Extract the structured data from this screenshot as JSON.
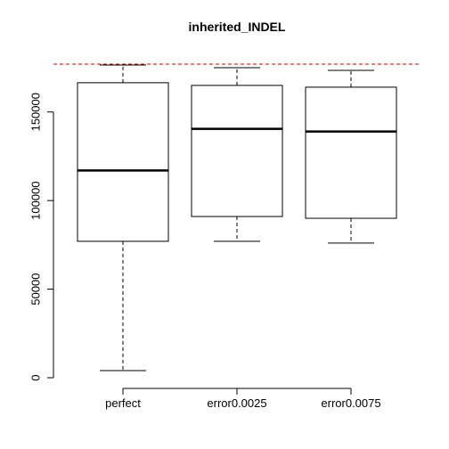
{
  "chart_data": {
    "type": "boxplot",
    "title": "inherited_INDEL",
    "xlabel": "",
    "ylabel": "",
    "categories": [
      "perfect",
      "error0.0025",
      "error0.0075"
    ],
    "boxes": [
      {
        "whisker_low": 4000,
        "q1": 77000,
        "median": 117000,
        "q3": 166500,
        "whisker_high": 176500
      },
      {
        "whisker_low": 77000,
        "q1": 91000,
        "median": 140500,
        "q3": 165000,
        "whisker_high": 175000
      },
      {
        "whisker_low": 76000,
        "q1": 90000,
        "median": 139000,
        "q3": 164000,
        "whisker_high": 173500
      }
    ],
    "reference_line": {
      "y": 177000,
      "color": "#cc0000",
      "style": "dashed"
    },
    "ylim": [
      0,
      177000
    ],
    "yticks": [
      0,
      50000,
      100000,
      150000
    ],
    "ytick_labels": [
      "0",
      "50000",
      "100000",
      "150000"
    ],
    "grid": false,
    "legend": "none"
  }
}
